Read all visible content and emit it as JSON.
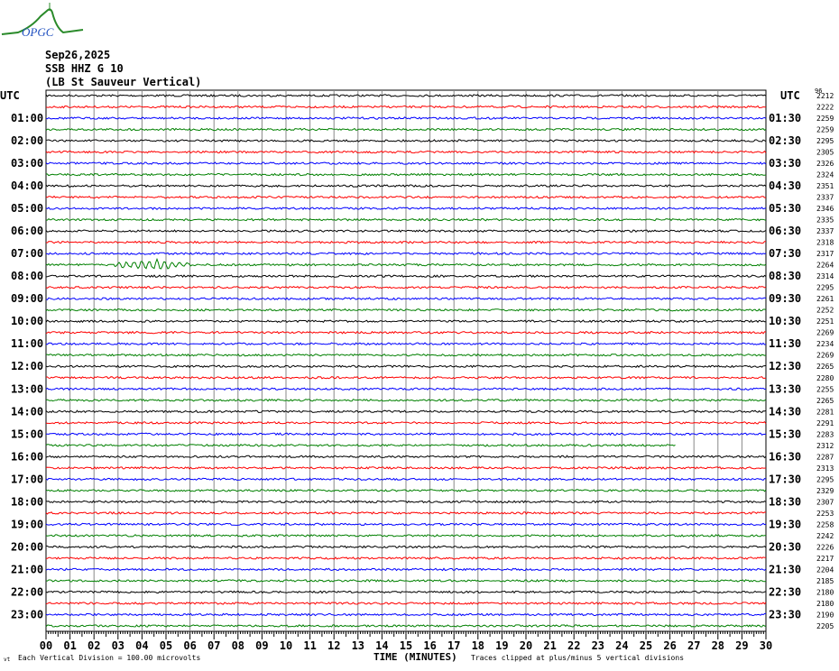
{
  "logo": {
    "text": "OPGC",
    "colors": {
      "hill": "#2a8a2a",
      "text": "#2050c0"
    }
  },
  "header": {
    "date": "Sep26,2025",
    "station": "SSB HHZ G 10",
    "description": "(LB St Sauveur Vertical)"
  },
  "chart_data": {
    "type": "line",
    "title": "Sep26,2025 SSB HHZ G 10 (LB St Sauveur Vertical)",
    "xlabel": "TIME (MINUTES)",
    "xlim": [
      0,
      30
    ],
    "x_ticks": [
      "00",
      "01",
      "02",
      "03",
      "04",
      "05",
      "06",
      "07",
      "08",
      "09",
      "10",
      "11",
      "12",
      "13",
      "14",
      "15",
      "16",
      "17",
      "18",
      "19",
      "20",
      "21",
      "22",
      "23",
      "24",
      "25",
      "26",
      "27",
      "28",
      "29",
      "30"
    ],
    "grid": true,
    "trace_colors": [
      "#000000",
      "#ff0000",
      "#0000ff",
      "#008000"
    ],
    "left_axis_title": "UTC",
    "right_axis_title": "UTC",
    "left_labels": [
      "01:00",
      "02:00",
      "03:00",
      "04:00",
      "05:00",
      "06:00",
      "07:00",
      "08:00",
      "09:00",
      "10:00",
      "11:00",
      "12:00",
      "13:00",
      "14:00",
      "15:00",
      "16:00",
      "17:00",
      "18:00",
      "19:00",
      "20:00",
      "21:00",
      "22:00",
      "23:00"
    ],
    "right_labels": [
      "01:30",
      "02:30",
      "03:30",
      "04:30",
      "05:30",
      "06:30",
      "07:30",
      "08:30",
      "09:30",
      "10:30",
      "11:30",
      "12:30",
      "13:30",
      "14:30",
      "15:30",
      "16:30",
      "17:30",
      "18:30",
      "19:30",
      "20:30",
      "21:30",
      "22:30",
      "23:30"
    ],
    "right_corner_label": "96",
    "trace_values": [
      "2212",
      "2222",
      "2259",
      "2259",
      "2295",
      "2305",
      "2326",
      "2324",
      "2351",
      "2337",
      "2346",
      "2335",
      "2337",
      "2318",
      "2317",
      "2264",
      "2314",
      "2295",
      "2261",
      "2252",
      "2251",
      "2269",
      "2234",
      "2269",
      "2265",
      "2280",
      "2255",
      "2265",
      "2281",
      "2291",
      "2283",
      "2312",
      "2287",
      "2313",
      "2295",
      "2329",
      "2307",
      "2253",
      "2258",
      "2242",
      "2226",
      "2217",
      "2204",
      "2185",
      "2180",
      "2180",
      "2190",
      "2205"
    ]
  },
  "footer": {
    "corner_mark": "vt",
    "scale_note": "Each Vertical Division =  100.00 microvolts",
    "clip_note": "Traces clipped at plus/minus 5 vertical divisions"
  }
}
